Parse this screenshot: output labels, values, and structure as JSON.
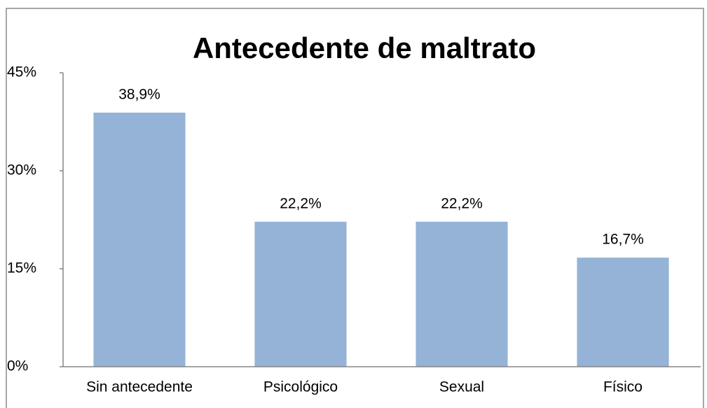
{
  "chart_data": {
    "type": "bar",
    "title": "Antecedente de maltrato",
    "categories": [
      "Sin antecedente",
      "Psicológico",
      "Sexual",
      "Físico"
    ],
    "values": [
      38.9,
      22.2,
      22.2,
      16.7
    ],
    "value_labels": [
      "38,9%",
      "22,2%",
      "22,2%",
      "16,7%"
    ],
    "color": "#95b3d7",
    "ylim": [
      0,
      45
    ],
    "yticks": [
      {
        "value": 0,
        "label": "0%"
      },
      {
        "value": 15,
        "label": "15%"
      },
      {
        "value": 30,
        "label": "30%"
      },
      {
        "value": 45,
        "label": "45%"
      }
    ],
    "grid": false
  }
}
